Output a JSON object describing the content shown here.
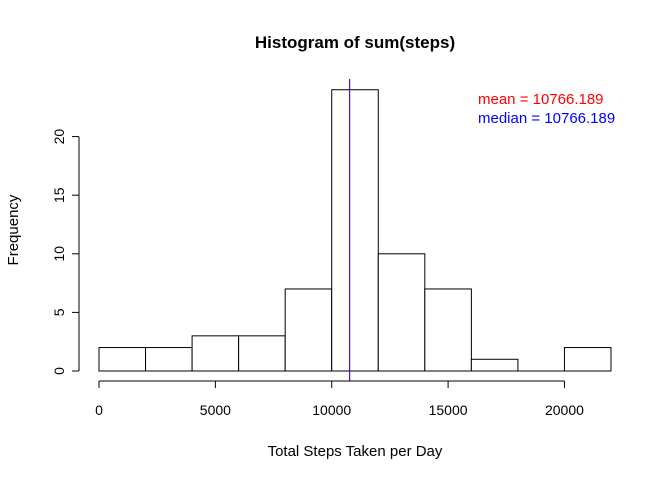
{
  "chart_data": {
    "type": "bar",
    "title": "Histogram of sum(steps)",
    "xlabel": "Total Steps Taken per Day",
    "ylabel": "Frequency",
    "bins": [
      {
        "start": 0,
        "end": 2000,
        "count": 2
      },
      {
        "start": 2000,
        "end": 4000,
        "count": 2
      },
      {
        "start": 4000,
        "end": 6000,
        "count": 3
      },
      {
        "start": 6000,
        "end": 8000,
        "count": 3
      },
      {
        "start": 8000,
        "end": 10000,
        "count": 7
      },
      {
        "start": 10000,
        "end": 12000,
        "count": 24
      },
      {
        "start": 12000,
        "end": 14000,
        "count": 10
      },
      {
        "start": 14000,
        "end": 16000,
        "count": 7
      },
      {
        "start": 16000,
        "end": 18000,
        "count": 1
      },
      {
        "start": 18000,
        "end": 20000,
        "count": 0
      },
      {
        "start": 20000,
        "end": 22000,
        "count": 2
      }
    ],
    "xlim": [
      0,
      22000
    ],
    "ylim": [
      0,
      24
    ],
    "x_ticks": [
      0,
      5000,
      10000,
      15000,
      20000
    ],
    "y_ticks": [
      0,
      5,
      10,
      15,
      20
    ],
    "mean": 10766.189,
    "median": 10766.189,
    "legend": {
      "placement": "top-right",
      "mean_text": "mean = 10766.189",
      "median_text": "median = 10766.189",
      "mean_color": "#ff0000",
      "median_color": "#0000ff"
    },
    "mean_line_color": "#ff0000",
    "median_line_color": "#0000ff",
    "grid": false
  }
}
